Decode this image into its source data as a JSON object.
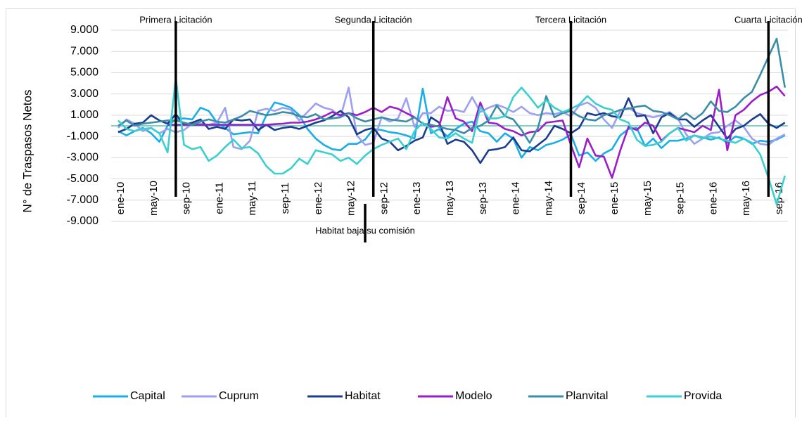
{
  "chart_data": {
    "type": "line",
    "y_label": "N° de Traspasos Netos",
    "categories": [
      "ene-10",
      null,
      null,
      null,
      "may-10",
      null,
      null,
      null,
      "sep-10",
      null,
      null,
      null,
      "ene-11",
      null,
      null,
      null,
      "may-11",
      null,
      null,
      null,
      "sep-11",
      null,
      null,
      null,
      "ene-12",
      null,
      null,
      null,
      "may-12",
      null,
      null,
      null,
      "sep-12",
      null,
      null,
      null,
      "ene-13",
      null,
      null,
      null,
      "may-13",
      null,
      null,
      null,
      "sep-13",
      null,
      null,
      null,
      "ene-14",
      null,
      null,
      null,
      "may-14",
      null,
      null,
      null,
      "sep-14",
      null,
      null,
      null,
      "ene-15",
      null,
      null,
      null,
      "may-15",
      null,
      null,
      null,
      "sep-15",
      null,
      null,
      null,
      "ene-16",
      null,
      null,
      null,
      "may-16",
      null,
      null,
      null,
      "sep-16",
      null
    ],
    "ylim": [
      -9000,
      9000
    ],
    "yticks": [
      {
        "value": -9000,
        "label": "-9.000"
      },
      {
        "value": -7000,
        "label": "-7.000"
      },
      {
        "value": -5000,
        "label": "-5.000"
      },
      {
        "value": -3000,
        "label": "-3.000"
      },
      {
        "value": -1000,
        "label": "-1.000"
      },
      {
        "value": 1000,
        "label": "1.000"
      },
      {
        "value": 3000,
        "label": "3.000"
      },
      {
        "value": 5000,
        "label": "5.000"
      },
      {
        "value": 7000,
        "label": "7.000"
      },
      {
        "value": 9000,
        "label": "9.000"
      }
    ],
    "grid": true,
    "annotations": [
      {
        "text": "Primera Licitación",
        "x": 7
      },
      {
        "text": "Segunda Licitación",
        "x": 31
      },
      {
        "text": "Tercera Licitación",
        "x": 55
      },
      {
        "text": "Cuarta Licitación",
        "x": 79
      }
    ],
    "bottom_annotation": {
      "text": "Habitat baja su comisión",
      "x": 30
    },
    "series": [
      {
        "name": "Capital",
        "color": "#1aaee8",
        "values": [
          -500,
          -900,
          -500,
          -200,
          -700,
          -1500,
          0,
          600,
          700,
          600,
          1700,
          1400,
          300,
          -200,
          -800,
          -700,
          -600,
          -700,
          1000,
          2200,
          2000,
          1700,
          1000,
          -300,
          -1200,
          -1800,
          -2200,
          -2300,
          -1700,
          -1700,
          -1300,
          -300,
          -400,
          -600,
          -700,
          -900,
          -1200,
          3500,
          -700,
          -300,
          -1000,
          -300,
          200,
          400,
          -500,
          -700,
          -1500,
          -700,
          -1200,
          -3000,
          -2000,
          -2300,
          -1800,
          -1600,
          -1300,
          -800,
          -2800,
          -2500,
          -3300,
          -2600,
          -2200,
          -900,
          -300,
          -200,
          -1900,
          -1200,
          -2100,
          -1400,
          -1400,
          -1200,
          -900,
          -1100,
          -1300,
          -1100,
          -1600,
          -1000,
          -1200,
          -1700,
          -1400,
          -1500,
          -1300,
          -900
        ]
      },
      {
        "name": "Cuprum",
        "color": "#9d9ff0",
        "values": [
          -200,
          600,
          200,
          -500,
          -200,
          -700,
          -300,
          -600,
          -400,
          200,
          200,
          100,
          300,
          1700,
          -2000,
          -2200,
          -1400,
          1400,
          1600,
          1400,
          1700,
          1500,
          500,
          1300,
          2100,
          1700,
          1500,
          800,
          3600,
          -900,
          -1800,
          -1600,
          800,
          400,
          700,
          2600,
          -100,
          1200,
          1200,
          1800,
          1400,
          1500,
          1300,
          2700,
          1300,
          1700,
          2000,
          1700,
          1300,
          1800,
          1200,
          1000,
          1200,
          1100,
          1300,
          900,
          1900,
          2200,
          1700,
          600,
          -200,
          1400,
          1700,
          1200,
          1000,
          800,
          1000,
          1300,
          700,
          -800,
          -1700,
          -1200,
          -700,
          -600,
          0,
          500,
          -100,
          -1200,
          -1700,
          -1800,
          -1200,
          -800
        ]
      },
      {
        "name": "Habitat",
        "color": "#1c3c8e",
        "values": [
          -600,
          -300,
          200,
          300,
          1000,
          500,
          200,
          1100,
          100,
          300,
          600,
          -300,
          -100,
          -300,
          600,
          500,
          600,
          -400,
          100,
          -400,
          -200,
          -100,
          -300,
          0,
          300,
          500,
          900,
          1400,
          800,
          -800,
          -400,
          -200,
          -1200,
          -1500,
          -2300,
          -1900,
          -1400,
          -1100,
          800,
          300,
          -1700,
          -1300,
          -1500,
          -2300,
          -3500,
          -2300,
          -2200,
          -2000,
          -1100,
          -2300,
          -2400,
          -1800,
          -1200,
          0,
          -300,
          -700,
          -200,
          1200,
          1000,
          1200,
          900,
          800,
          2600,
          900,
          1000,
          -700,
          800,
          1200,
          600,
          600,
          -100,
          500,
          1000,
          -100,
          -1200,
          -300,
          0,
          600,
          1100,
          200,
          -200,
          300
        ]
      },
      {
        "name": "Modelo",
        "color": "#9a1ec8",
        "values": [
          null,
          null,
          null,
          null,
          null,
          null,
          100,
          100,
          100,
          100,
          100,
          100,
          100,
          100,
          100,
          100,
          100,
          100,
          100,
          150,
          200,
          300,
          300,
          400,
          600,
          900,
          1300,
          1000,
          1200,
          1000,
          1300,
          1700,
          1300,
          1800,
          1600,
          1200,
          800,
          200,
          -100,
          0,
          2700,
          700,
          400,
          -500,
          2200,
          300,
          200,
          -300,
          -500,
          -900,
          -600,
          -500,
          300,
          400,
          500,
          -1800,
          -3900,
          -1200,
          -2800,
          -2900,
          -4900,
          -2300,
          -100,
          -400,
          300,
          0,
          -1400,
          -700,
          -200,
          -400,
          -600,
          0,
          -400,
          3400,
          -2300,
          1000,
          1500,
          2300,
          2900,
          3200,
          3700,
          2800
        ]
      },
      {
        "name": "Planvital",
        "color": "#3a8ea8",
        "values": [
          0,
          500,
          0,
          200,
          300,
          400,
          500,
          500,
          300,
          100,
          400,
          600,
          400,
          300,
          600,
          900,
          1400,
          1200,
          1000,
          1100,
          1300,
          1200,
          900,
          800,
          1100,
          600,
          700,
          800,
          1200,
          700,
          400,
          600,
          800,
          600,
          500,
          400,
          800,
          200,
          100,
          -100,
          -300,
          -400,
          -700,
          -200,
          0,
          500,
          1900,
          900,
          600,
          -400,
          -1600,
          -200,
          2800,
          800,
          1200,
          1400,
          900,
          600,
          500,
          1000,
          1200,
          1500,
          1600,
          1800,
          1900,
          1400,
          1300,
          1000,
          600,
          1200,
          600,
          1200,
          2300,
          1400,
          1300,
          1800,
          2600,
          3200,
          4800,
          6500,
          8200,
          3600
        ]
      },
      {
        "name": "Provida",
        "color": "#3ccfd0",
        "values": [
          500,
          -300,
          -500,
          -300,
          -200,
          -700,
          -2500,
          4500,
          -1800,
          -2200,
          -2000,
          -3300,
          -2800,
          -2000,
          -1300,
          -2100,
          -2000,
          -2600,
          -3800,
          -4500,
          -4500,
          -4000,
          -3100,
          -3600,
          -2300,
          -2500,
          -2700,
          -3300,
          -3000,
          -3600,
          -2800,
          -2200,
          -1800,
          -1500,
          -1200,
          -2200,
          -500,
          300,
          -300,
          -1100,
          -1200,
          -700,
          -1200,
          -1600,
          1800,
          700,
          700,
          900,
          2700,
          3600,
          2700,
          1700,
          2400,
          1700,
          1300,
          1600,
          2000,
          2800,
          2100,
          1700,
          1500,
          600,
          300,
          -1300,
          -1900,
          -1800,
          -1500,
          -700,
          -200,
          -1400,
          -900,
          -1200,
          -1000,
          -1200,
          -1400,
          -1600,
          -1200,
          -1600,
          -2700,
          -4900,
          -7400,
          -4700
        ]
      }
    ]
  }
}
